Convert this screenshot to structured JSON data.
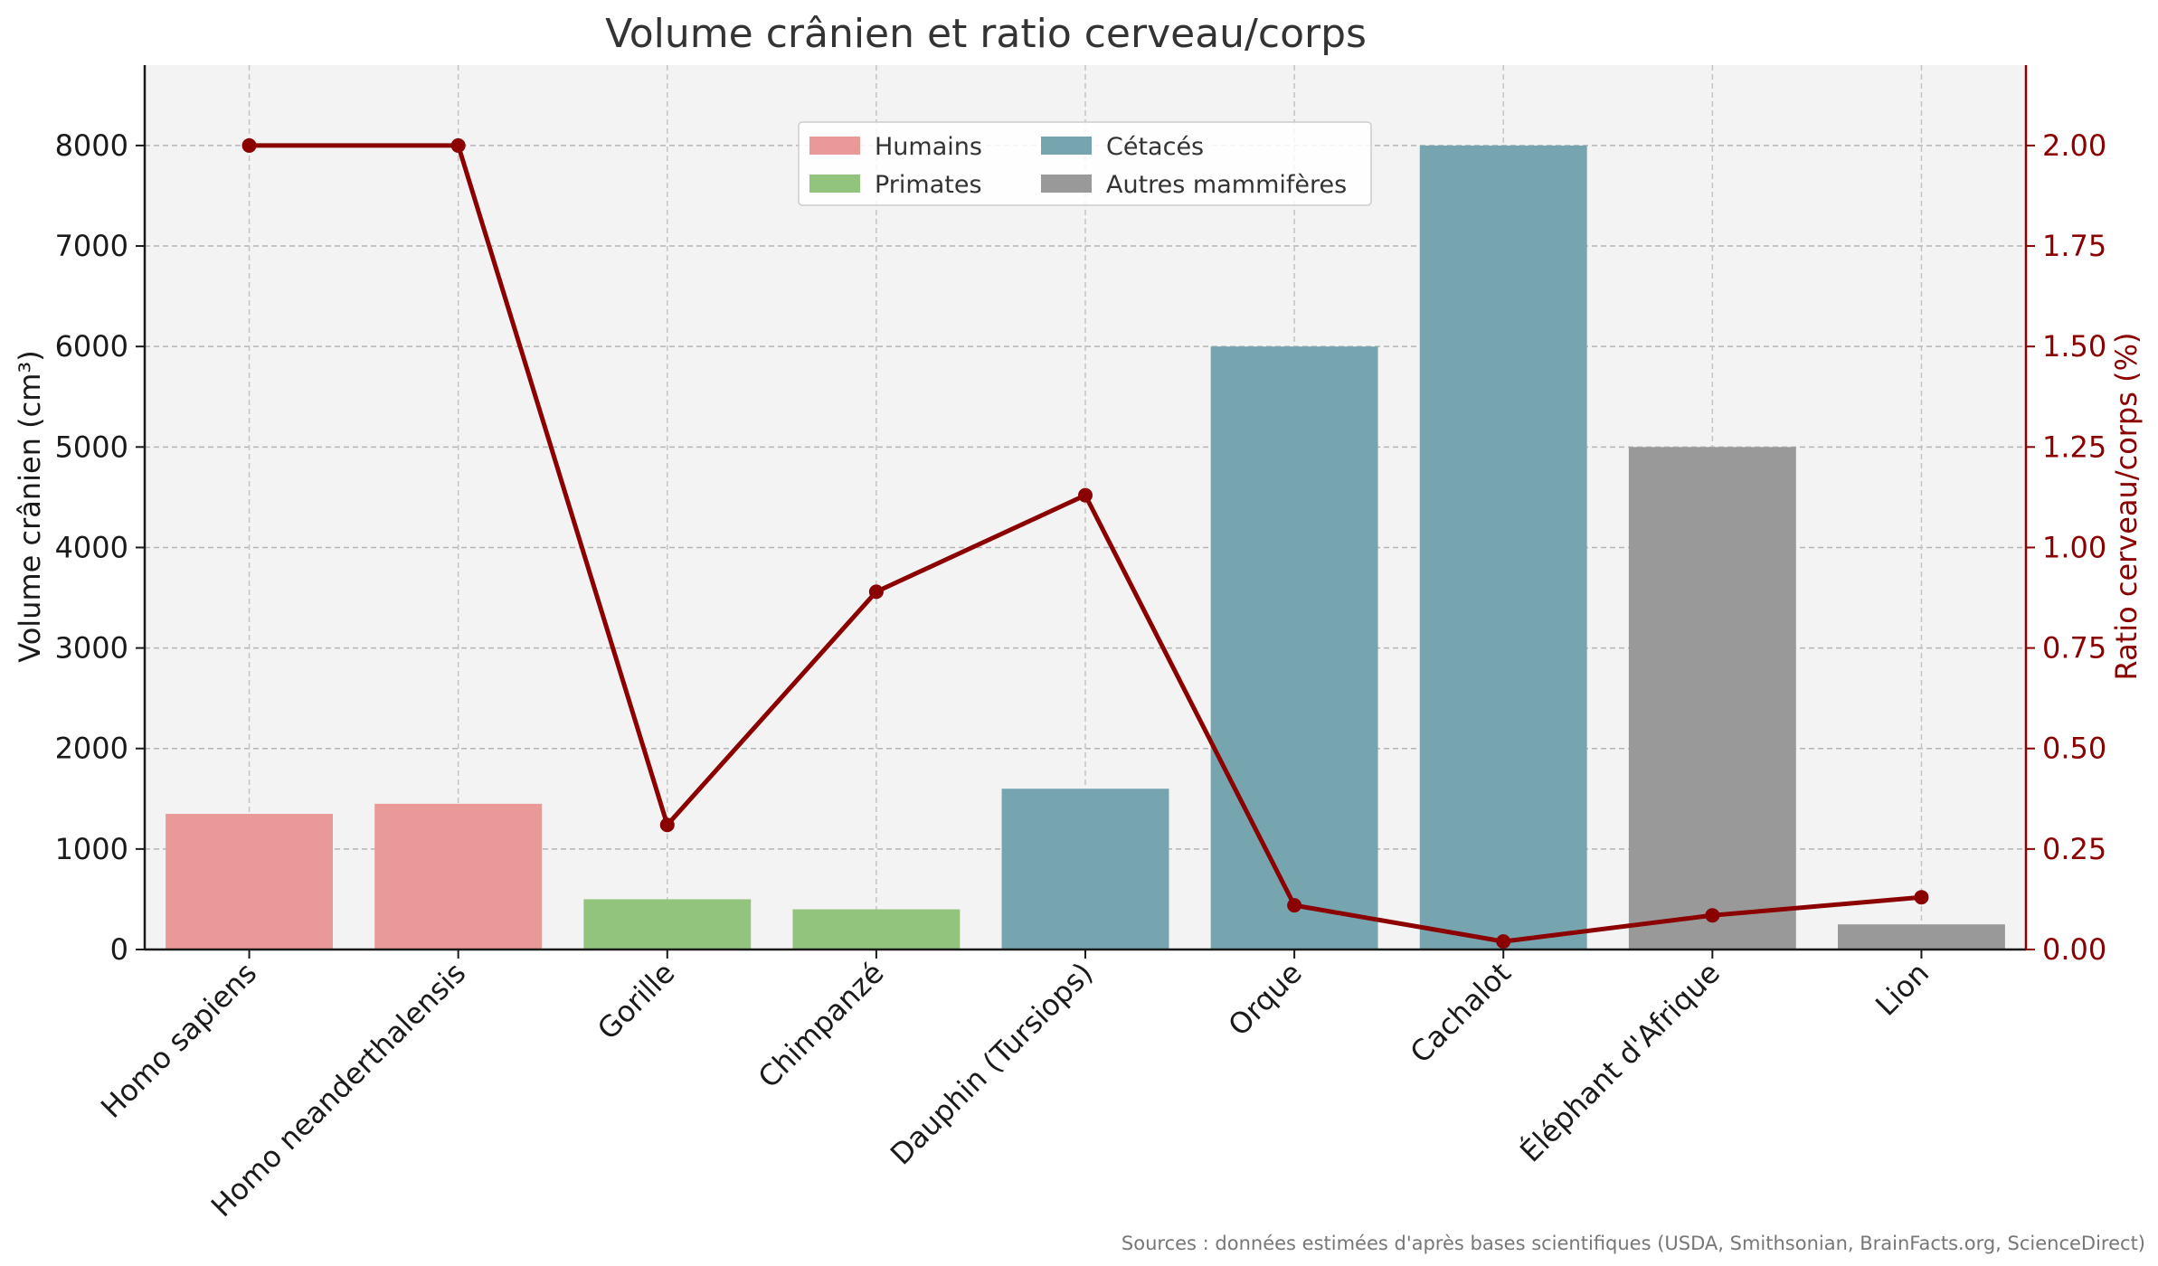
{
  "chart_data": {
    "type": "bar",
    "title": "Volume crânien et ratio cerveau/corps",
    "categories": [
      "Homo sapiens",
      "Homo neanderthalensis",
      "Gorille",
      "Chimpanzé",
      "Dauphin (Tursiops)",
      "Orque",
      "Cachalot",
      "Éléphant d'Afrique",
      "Lion"
    ],
    "groups": [
      "Humains",
      "Humains",
      "Primates",
      "Primates",
      "Cétacés",
      "Cétacés",
      "Cétacés",
      "Autres mammifères",
      "Autres mammifères"
    ],
    "series": [
      {
        "name": "",
        "kind": "bar",
        "axis": "left",
        "values": [
          1350,
          1450,
          500,
          400,
          1600,
          6000,
          8000,
          5000,
          250
        ]
      },
      {
        "name": "",
        "kind": "line",
        "axis": "right",
        "color": "#8b0000",
        "values": [
          2.0,
          2.0,
          0.31,
          0.89,
          1.13,
          0.11,
          0.02,
          0.085,
          0.13
        ]
      }
    ],
    "legend": {
      "placement": "top-center",
      "entries": [
        {
          "label": "Humains",
          "color": "#ea9999"
        },
        {
          "label": "Primates",
          "color": "#93c47d"
        },
        {
          "label": "Cétacés",
          "color": "#76a5af"
        },
        {
          "label": "Autres mammifères",
          "color": "#999999"
        }
      ]
    },
    "ylabel": "Volume crânien (cm³)",
    "ylabel_right": "Ratio cerveau/corps (%)",
    "ylim": [
      0,
      8800
    ],
    "ylim_right": [
      0,
      2.2
    ],
    "yticks": [
      0,
      1000,
      2000,
      3000,
      4000,
      5000,
      6000,
      7000,
      8000
    ],
    "yticks_right": [
      "0.00",
      "0.25",
      "0.50",
      "0.75",
      "1.00",
      "1.25",
      "1.50",
      "1.75",
      "2.00"
    ],
    "grid": true,
    "background": "#f3f3f3",
    "source_note": "Sources : données estimées d'après bases scientifiques (USDA, Smithsonian, BrainFacts.org, ScienceDirect)"
  }
}
